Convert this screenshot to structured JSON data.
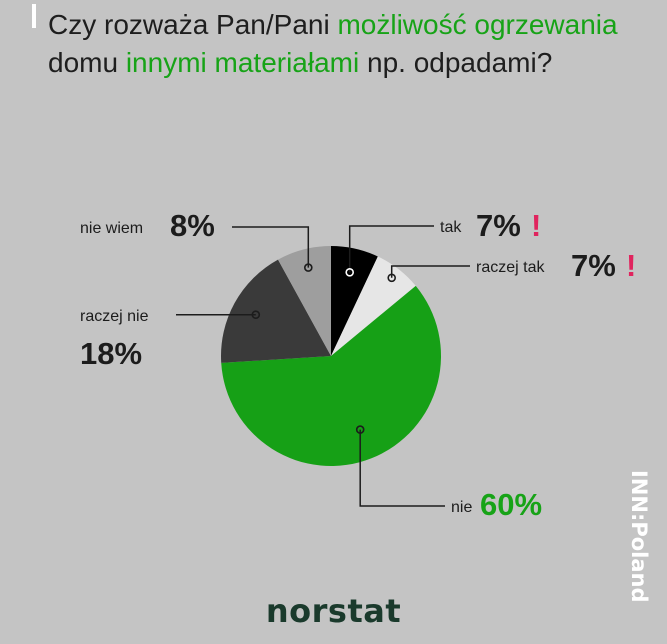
{
  "title": {
    "parts": [
      {
        "text": "Czy rozważa Pan/Pani ",
        "highlight": false
      },
      {
        "text": "możliwość ogrzewania",
        "highlight": true
      },
      {
        "text": " domu ",
        "highlight": false
      },
      {
        "text": "innymi materiałami",
        "highlight": true
      },
      {
        "text": " np. odpadami?",
        "highlight": false
      }
    ]
  },
  "colors": {
    "background": "#c4c4c4",
    "highlight": "#17a317",
    "alert": "#e0245e",
    "leader_line": "#1c1c1c"
  },
  "chart_data": {
    "type": "pie",
    "title": "Czy rozważa Pan/Pani możliwość ogrzewania domu innymi materiałami np. odpadami?",
    "slices": [
      {
        "label": "tak",
        "value": 7,
        "value_label": "7%",
        "color": "#000000",
        "alert": "!"
      },
      {
        "label": "raczej tak",
        "value": 7,
        "value_label": "7%",
        "color": "#e6e6e6",
        "alert": "!"
      },
      {
        "label": "nie",
        "value": 60,
        "value_label": "60%",
        "color": "#16a016",
        "alert": ""
      },
      {
        "label": "raczej nie",
        "value": 18,
        "value_label": "18%",
        "color": "#3a3a3a",
        "alert": ""
      },
      {
        "label": "nie wiem",
        "value": 8,
        "value_label": "8%",
        "color": "#9e9e9e",
        "alert": ""
      }
    ],
    "start_angle": "top",
    "direction": "clockwise"
  },
  "brand": {
    "logo": "norstat",
    "side": "INN:Poland"
  }
}
